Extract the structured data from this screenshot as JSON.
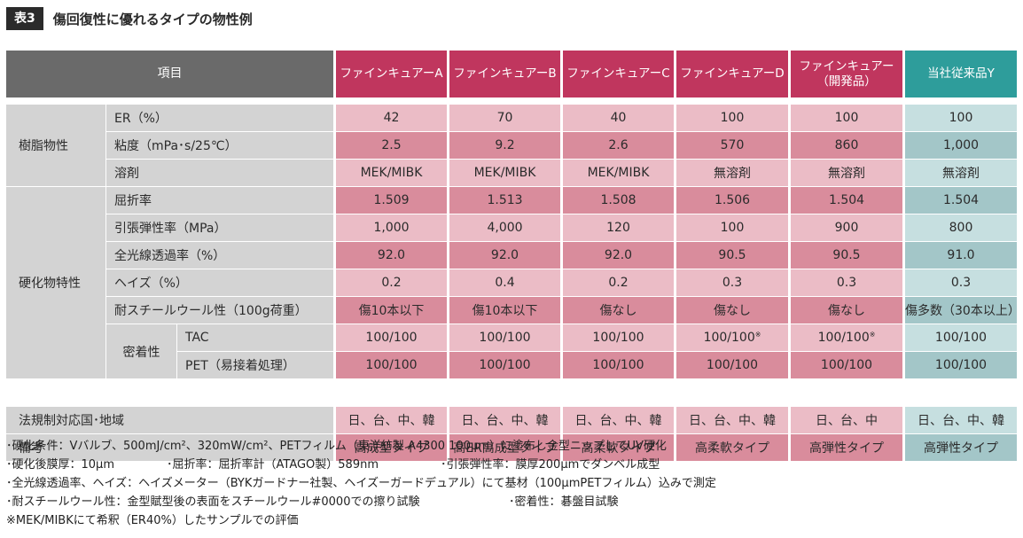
{
  "header": {
    "badge": "表3",
    "title": "傷回復性に優れるタイプの物性例"
  },
  "table": {
    "item_header": "項目",
    "products": [
      {
        "name": "ファインキュアーA",
        "sub": ""
      },
      {
        "name": "ファインキュアーB",
        "sub": ""
      },
      {
        "name": "ファインキュアーC",
        "sub": ""
      },
      {
        "name": "ファインキュアーD",
        "sub": ""
      },
      {
        "name": "ファインキュアー",
        "sub": "（開発品）"
      },
      {
        "name": "当社従来品Y",
        "sub": ""
      }
    ],
    "groups": {
      "resin": "樹脂物性",
      "cured": "硬化物特性",
      "adhesion": "密着性"
    },
    "rows": [
      {
        "label": "ER（%）",
        "values": [
          "42",
          "70",
          "40",
          "100",
          "100",
          "100"
        ]
      },
      {
        "label": "粘度（mPa･s/25℃）",
        "values": [
          "2.5",
          "9.2",
          "2.6",
          "570",
          "860",
          "1,000"
        ]
      },
      {
        "label": "溶剤",
        "values": [
          "MEK/MIBK",
          "MEK/MIBK",
          "MEK/MIBK",
          "無溶剤",
          "無溶剤",
          "無溶剤"
        ]
      },
      {
        "label": "屈折率",
        "values": [
          "1.509",
          "1.513",
          "1.508",
          "1.506",
          "1.504",
          "1.504"
        ]
      },
      {
        "label": "引張弾性率（MPa）",
        "values": [
          "1,000",
          "4,000",
          "120",
          "100",
          "900",
          "800"
        ]
      },
      {
        "label": "全光線透過率（%）",
        "values": [
          "92.0",
          "92.0",
          "92.0",
          "90.5",
          "90.5",
          "91.0"
        ]
      },
      {
        "label": "ヘイズ（%）",
        "values": [
          "0.2",
          "0.4",
          "0.2",
          "0.3",
          "0.3",
          "0.3"
        ]
      },
      {
        "label": "耐スチールウール性（100g荷重）",
        "values": [
          "傷10本以下",
          "傷10本以下",
          "傷なし",
          "傷なし",
          "傷なし",
          "傷多数（30本以上）"
        ]
      },
      {
        "label": "TAC",
        "values": [
          "100/100",
          "100/100",
          "100/100",
          "100/100",
          "100/100",
          "100/100"
        ],
        "marks": [
          "",
          "",
          "",
          "※",
          "※",
          ""
        ]
      },
      {
        "label": "PET（易接着処理）",
        "values": [
          "100/100",
          "100/100",
          "100/100",
          "100/100",
          "100/100",
          "100/100"
        ]
      },
      {
        "label": "法規制対応国･地域",
        "values": [
          "日、台、中、韓",
          "日、台、中、韓",
          "日、台、中、韓",
          "日、台、中、韓",
          "日、台、中",
          "日、台、中、韓"
        ]
      },
      {
        "label": "備考",
        "values": [
          "高成型タイプ",
          "高ER高成型タイプ",
          "高柔軟タイプ",
          "高柔軟タイプ",
          "高弾性タイプ",
          "高弾性タイプ"
        ]
      }
    ]
  },
  "notes": {
    "line1": "･硬化条件：Vバルブ、500mJ/cm²、320mW/cm²、PETフィルム（東洋紡製 A4300 100μm）に塗布し金型ニップしてUV硬化",
    "line2a": "･硬化後膜厚：10μm",
    "line2b": "･屈折率：屈折率計（ATAGO製）589nm",
    "line2c": "･引張弾性率：膜厚200μmでダンベル成型",
    "line3": "･全光線透過率、ヘイズ：ヘイズメーター（BYKガードナー社製、ヘイズーガードデュアル）にて基材（100μmPETフィルム）込みで測定",
    "line4a": "･耐スチールウール性：金型賦型後の表面をスチールウール#0000での擦り試験",
    "line4b": "･密着性：碁盤目試験",
    "line5": "※MEK/MIBKにて希釈（ER40%）したサンプルでの評価"
  },
  "colors": {
    "product_header": "#c0365e",
    "conventional_header": "#2e9d9b",
    "label_bg": "#d3d3d3",
    "item_header": "#6a6a6a"
  }
}
